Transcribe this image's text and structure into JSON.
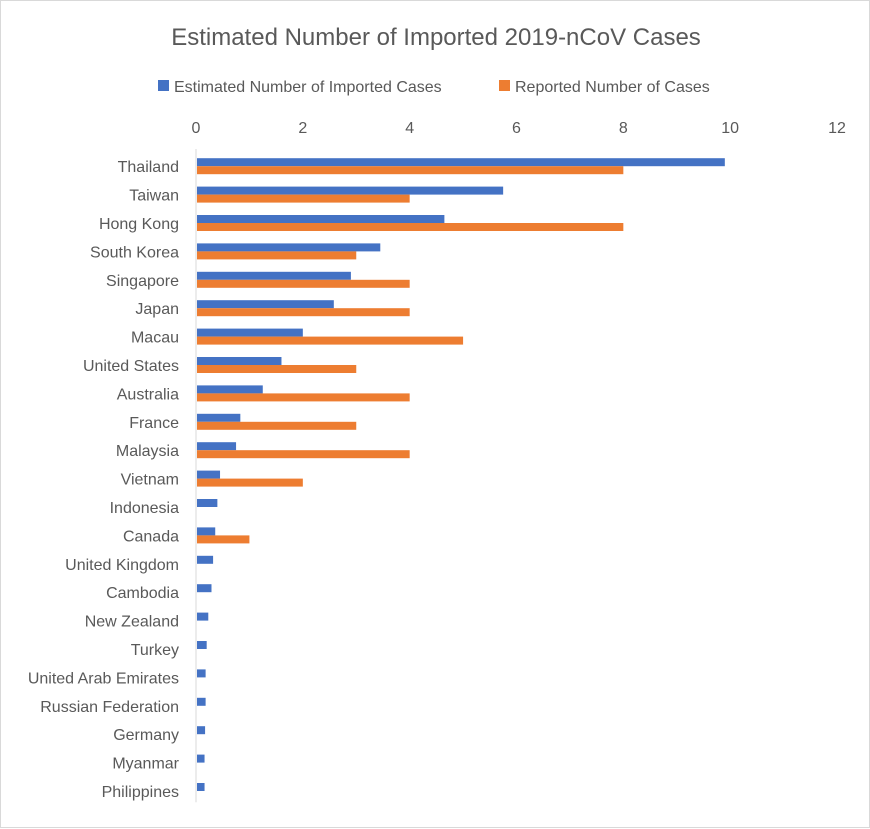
{
  "chart_data": {
    "type": "bar",
    "orientation": "horizontal",
    "title": "Estimated Number of Imported 2019-nCoV Cases",
    "xlabel": "",
    "ylabel": "",
    "xlim": [
      0,
      12
    ],
    "xticks": [
      "0",
      "2",
      "4",
      "6",
      "8",
      "10",
      "12"
    ],
    "legend_position": "top",
    "grid": false,
    "colors": {
      "estimated": "#4472c4",
      "reported": "#ed7d31"
    },
    "categories": [
      "Thailand",
      "Taiwan",
      "Hong Kong",
      "South Korea",
      "Singapore",
      "Japan",
      "Macau",
      "United States",
      "Australia",
      "France",
      "Malaysia",
      "Vietnam",
      "Indonesia",
      "Canada",
      "United Kingdom",
      "Cambodia",
      "New Zealand",
      "Turkey",
      "United Arab Emirates",
      "Russian Federation",
      "Germany",
      "Myanmar",
      "Philippines"
    ],
    "series": [
      {
        "name": "Estimated Number of Imported Cases",
        "values": [
          9.9,
          5.75,
          4.65,
          3.45,
          2.9,
          2.58,
          2.0,
          1.6,
          1.25,
          0.83,
          0.75,
          0.45,
          0.4,
          0.36,
          0.32,
          0.29,
          0.23,
          0.2,
          0.18,
          0.18,
          0.17,
          0.16,
          0.16
        ]
      },
      {
        "name": "Reported Number of Cases",
        "values": [
          8,
          4,
          8,
          3,
          4,
          4,
          5,
          3,
          4,
          3,
          4,
          2,
          0,
          1,
          0,
          0,
          0,
          0,
          0,
          0,
          0,
          0,
          0
        ]
      }
    ]
  }
}
